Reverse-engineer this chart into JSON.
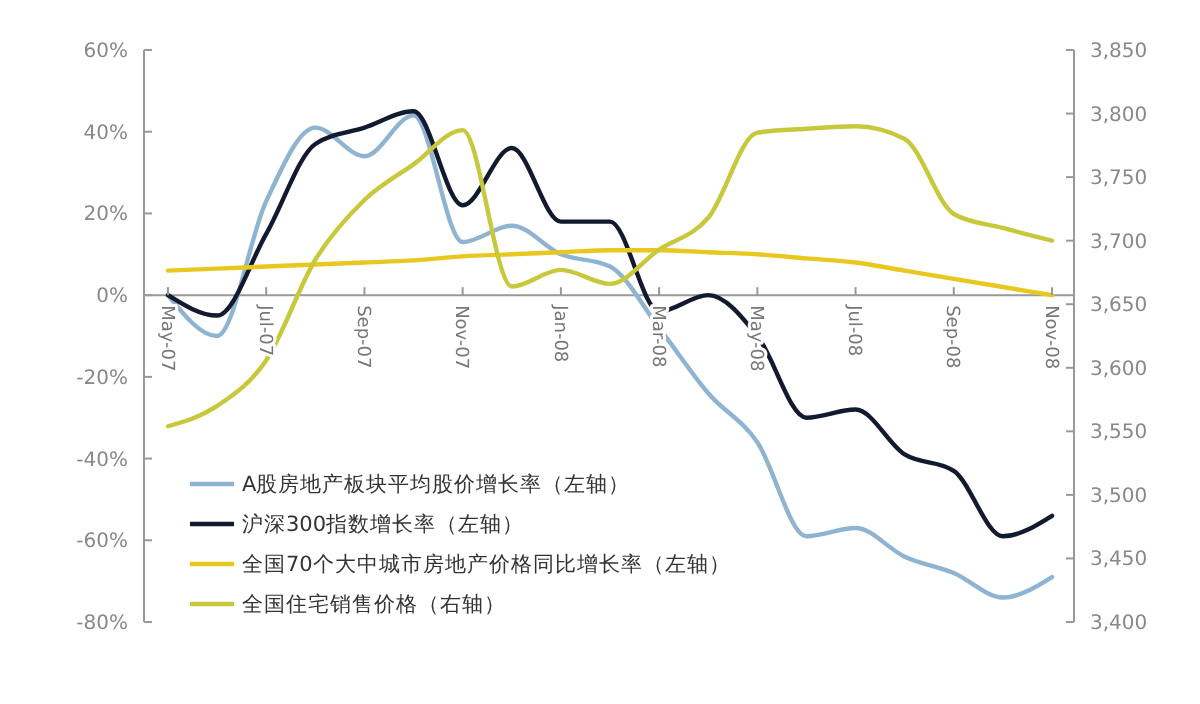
{
  "chart_data": {
    "type": "line",
    "categories": [
      "May-07",
      null,
      "Jul-07",
      null,
      "Sep-07",
      null,
      "Nov-07",
      null,
      "Jan-08",
      null,
      "Mar-08",
      null,
      "May-08",
      null,
      "Jul-08",
      null,
      "Sep-08",
      null,
      "Nov-08"
    ],
    "series": [
      {
        "name": "A股房地产板块平均股价增长率（左轴）",
        "color": "#8fb4d2",
        "values": [
          0,
          -10,
          23,
          41,
          34,
          44,
          13,
          17,
          10,
          7,
          -8,
          -24,
          -36,
          -59,
          -57,
          -64,
          -68,
          -74,
          -69
        ]
      },
      {
        "name": "沪深300指数增长率（左轴）",
        "color": "#111a2e",
        "values": [
          0,
          -5,
          15,
          37,
          41,
          45,
          22,
          36,
          18,
          18,
          -4,
          0,
          -10,
          -30,
          -28,
          -39,
          -43,
          -59,
          -54
        ]
      },
      {
        "name": "全国70个大中城市房地产价格同比增长率（左轴）",
        "color": "#e8c81e",
        "values": [
          6,
          6.5,
          7,
          7.5,
          8,
          8.5,
          9.5,
          10,
          10.5,
          11,
          11,
          10.5,
          10,
          9,
          8,
          6,
          4,
          2,
          0
        ]
      },
      {
        "name": "全国住宅销售价格（右轴）",
        "color": "#c8c83c",
        "axis": "y2",
        "values": [
          3554,
          3570,
          3606,
          3685,
          3732,
          3760,
          3787,
          3664,
          3677,
          3666,
          3693,
          3718,
          3785,
          3788,
          3790,
          3780,
          3721,
          3710,
          3700
        ]
      }
    ],
    "ylim": [
      -80,
      60
    ],
    "yticks": [
      {
        "value": 60,
        "label": "60%"
      },
      {
        "value": 40,
        "label": "40%"
      },
      {
        "value": 20,
        "label": "20%"
      },
      {
        "value": 0,
        "label": "0%"
      },
      {
        "value": -20,
        "label": "-20%"
      },
      {
        "value": -40,
        "label": "-40%"
      },
      {
        "value": -60,
        "label": "-60%"
      },
      {
        "value": -80,
        "label": "-80%"
      }
    ],
    "y2lim": [
      3400,
      3850
    ],
    "y2ticks": [
      {
        "value": 3400,
        "label": "3,400"
      },
      {
        "value": 3450,
        "label": "3,450"
      },
      {
        "value": 3500,
        "label": "3,500"
      },
      {
        "value": 3550,
        "label": "3,550"
      },
      {
        "value": 3600,
        "label": "3,600"
      },
      {
        "value": 3650,
        "label": "3,650"
      },
      {
        "value": 3700,
        "label": "3,700"
      },
      {
        "value": 3750,
        "label": "3,750"
      },
      {
        "value": 3800,
        "label": "3,800"
      },
      {
        "value": 3850,
        "label": "3,850"
      }
    ],
    "legend": "bottom left",
    "grid": false,
    "marker": "none",
    "line_style": "solid"
  }
}
